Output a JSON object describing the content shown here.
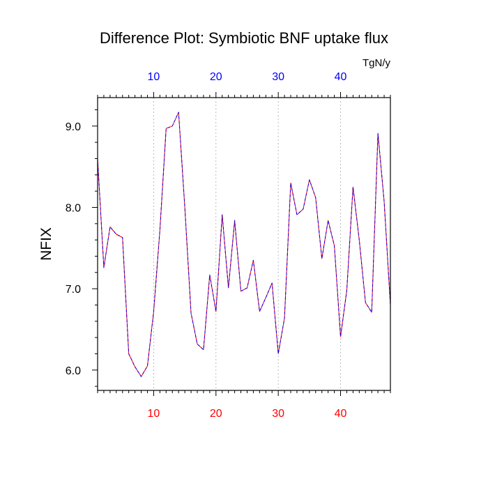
{
  "chart_data": {
    "type": "line",
    "title": "Difference Plot: Symbiotic BNF uptake flux",
    "units": "TgN/y",
    "ylabel": "NFIX",
    "xlabel": "",
    "xlim": [
      1,
      48
    ],
    "ylim": [
      5.75,
      9.35
    ],
    "x_ticks": [
      10,
      20,
      30,
      40
    ],
    "y_ticks": [
      6.0,
      7.0,
      8.0,
      9.0
    ],
    "x_tick_labels": [
      "10",
      "20",
      "30",
      "40"
    ],
    "y_tick_labels": [
      "6.0",
      "7.0",
      "8.0",
      "9.0"
    ],
    "grid": "vertical dashed at major x ticks",
    "colors": {
      "top_axis_labels": "#0000ff",
      "bottom_axis_labels": "#ff0000",
      "series_1": "#ff0000",
      "series_2": "#0000ff"
    },
    "x": [
      1,
      2,
      3,
      4,
      5,
      6,
      7,
      8,
      9,
      10,
      11,
      12,
      13,
      14,
      15,
      16,
      17,
      18,
      19,
      20,
      21,
      22,
      23,
      24,
      25,
      26,
      27,
      28,
      29,
      30,
      31,
      32,
      33,
      34,
      35,
      36,
      37,
      38,
      39,
      40,
      41,
      42,
      43,
      44,
      45,
      46,
      47,
      48
    ],
    "series": [
      {
        "values": [
          8.6,
          7.26,
          7.76,
          7.67,
          7.63,
          6.2,
          6.04,
          5.92,
          6.05,
          6.72,
          7.72,
          8.97,
          9.0,
          9.17,
          8.0,
          6.7,
          6.32,
          6.25,
          7.17,
          6.72,
          7.91,
          7.01,
          7.84,
          6.97,
          7.01,
          7.35,
          6.72,
          6.89,
          7.07,
          6.2,
          6.64,
          8.3,
          7.91,
          7.98,
          8.34,
          8.12,
          7.37,
          7.84,
          7.53,
          6.41,
          6.98,
          8.25,
          7.6,
          6.83,
          6.71,
          8.91,
          8.07,
          6.8
        ]
      },
      {
        "values": [
          8.6,
          7.26,
          7.76,
          7.67,
          7.63,
          6.2,
          6.04,
          5.92,
          6.05,
          6.72,
          7.72,
          8.97,
          9.0,
          9.17,
          8.0,
          6.7,
          6.32,
          6.25,
          7.17,
          6.72,
          7.91,
          7.01,
          7.84,
          6.97,
          7.01,
          7.35,
          6.72,
          6.89,
          7.07,
          6.2,
          6.64,
          8.3,
          7.91,
          7.98,
          8.34,
          8.12,
          7.37,
          7.84,
          7.53,
          6.41,
          6.98,
          8.25,
          7.6,
          6.83,
          6.71,
          8.91,
          8.07,
          6.8
        ]
      }
    ]
  }
}
